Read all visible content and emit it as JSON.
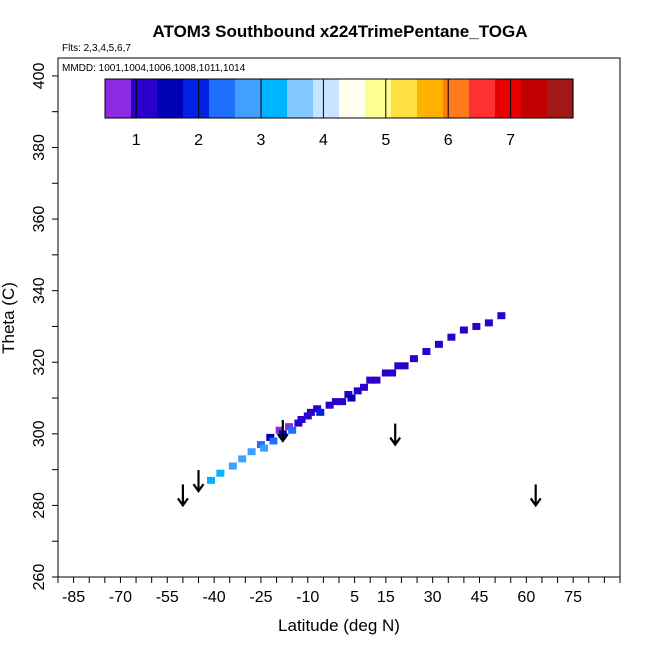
{
  "chart_data": {
    "type": "heatmap",
    "title": "ATOM3 Southbound x224TrimePentane_TOGA",
    "flights_label": "Flts: 2,3,4,5,6,7",
    "dates_label": "MMDD: 1001,1004,1006,1008,1011,1014",
    "xlabel": "Latitude (deg N)",
    "ylabel": "Theta (C)",
    "xlim": [
      -90,
      90
    ],
    "ylim": [
      260,
      405
    ],
    "x_tick_labels": [
      -85,
      -70,
      -55,
      -40,
      -25,
      -10,
      5,
      15,
      30,
      45,
      60,
      75
    ],
    "y_tick_labels": [
      260,
      280,
      300,
      320,
      340,
      360,
      380,
      400
    ],
    "colorbar": {
      "range": [
        0.5,
        8
      ],
      "tick_labels": [
        1,
        2,
        3,
        4,
        5,
        6,
        7
      ],
      "colors": [
        "#8a2be2",
        "#2b00cc",
        "#0000b4",
        "#0022e6",
        "#1f6fff",
        "#3fa0ff",
        "#00b4ff",
        "#80c8ff",
        "#c8e4ff",
        "#fffff0",
        "#ffff90",
        "#ffe040",
        "#ffb000",
        "#ff7a1a",
        "#ff3030",
        "#e60000",
        "#c00000",
        "#a01818"
      ]
    },
    "cells": [
      {
        "lat": -41,
        "theta": 287,
        "value": 3.0
      },
      {
        "lat": -38,
        "theta": 289,
        "value": 3.0
      },
      {
        "lat": -34,
        "theta": 291,
        "value": 2.9
      },
      {
        "lat": -31,
        "theta": 293,
        "value": 2.8
      },
      {
        "lat": -28,
        "theta": 295,
        "value": 2.6
      },
      {
        "lat": -25,
        "theta": 297,
        "value": 2.3
      },
      {
        "lat": -24,
        "theta": 296,
        "value": 2.6
      },
      {
        "lat": -22,
        "theta": 299,
        "value": 1.4
      },
      {
        "lat": -21,
        "theta": 298,
        "value": 2.4
      },
      {
        "lat": -19,
        "theta": 301,
        "value": 0.9
      },
      {
        "lat": -18,
        "theta": 300,
        "value": 1.5
      },
      {
        "lat": -16,
        "theta": 302,
        "value": 0.7
      },
      {
        "lat": -15,
        "theta": 301,
        "value": 2.2
      },
      {
        "lat": -13,
        "theta": 303,
        "value": 1.1
      },
      {
        "lat": -12,
        "theta": 304,
        "value": 1.2
      },
      {
        "lat": -10,
        "theta": 305,
        "value": 1.0
      },
      {
        "lat": -9,
        "theta": 306,
        "value": 1.3
      },
      {
        "lat": -7,
        "theta": 307,
        "value": 1.1
      },
      {
        "lat": -6,
        "theta": 306,
        "value": 1.8
      },
      {
        "lat": -3,
        "theta": 308,
        "value": 1.1
      },
      {
        "lat": -1,
        "theta": 309,
        "value": 1.2
      },
      {
        "lat": 1,
        "theta": 309,
        "value": 1.0
      },
      {
        "lat": 3,
        "theta": 311,
        "value": 1.2
      },
      {
        "lat": 4,
        "theta": 310,
        "value": 1.6
      },
      {
        "lat": 6,
        "theta": 312,
        "value": 1.1
      },
      {
        "lat": 8,
        "theta": 313,
        "value": 1.2
      },
      {
        "lat": 10,
        "theta": 315,
        "value": 1.0
      },
      {
        "lat": 12,
        "theta": 315,
        "value": 1.2
      },
      {
        "lat": 15,
        "theta": 317,
        "value": 1.1
      },
      {
        "lat": 17,
        "theta": 317,
        "value": 1.3
      },
      {
        "lat": 19,
        "theta": 319,
        "value": 1.1
      },
      {
        "lat": 21,
        "theta": 319,
        "value": 1.2
      },
      {
        "lat": 24,
        "theta": 321,
        "value": 1.2
      },
      {
        "lat": 28,
        "theta": 323,
        "value": 1.1
      },
      {
        "lat": 32,
        "theta": 325,
        "value": 1.0
      },
      {
        "lat": 36,
        "theta": 327,
        "value": 1.1
      },
      {
        "lat": 40,
        "theta": 329,
        "value": 1.0
      },
      {
        "lat": 44,
        "theta": 330,
        "value": 1.0
      },
      {
        "lat": 48,
        "theta": 331,
        "value": 1.1
      },
      {
        "lat": 52,
        "theta": 333,
        "value": 1.0
      }
    ],
    "arrows": [
      {
        "lat": -50,
        "theta": 280
      },
      {
        "lat": -45,
        "theta": 284
      },
      {
        "lat": -18,
        "theta": 298
      },
      {
        "lat": 18,
        "theta": 297
      },
      {
        "lat": 63,
        "theta": 280
      }
    ]
  }
}
